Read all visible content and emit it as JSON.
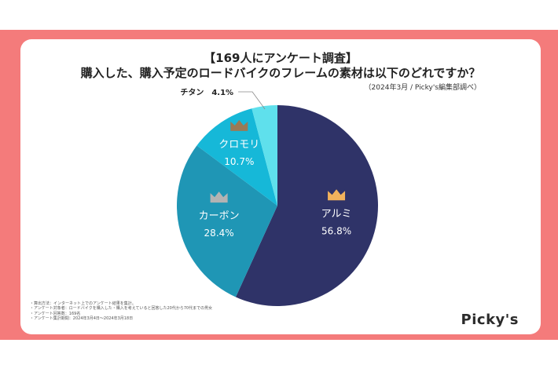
{
  "header": {
    "title_line1": "【169人にアンケート調査】",
    "title_line2": "購入した、購入予定のロードバイクのフレームの素材は以下のどれですか？",
    "source": "（2024年3月 / Picky's編集部調べ）"
  },
  "chart_data": {
    "type": "pie",
    "title": "購入した、購入予定のロードバイクのフレームの素材は以下のどれですか？",
    "start": "12 o'clock, clockwise",
    "slices": [
      {
        "label": "アルミ",
        "value": 56.8,
        "value_label": "56.8%",
        "color": "#2f3368",
        "crown": "gold"
      },
      {
        "label": "カーボン",
        "value": 28.4,
        "value_label": "28.4%",
        "color": "#1f96b5",
        "crown": "silver"
      },
      {
        "label": "クロモリ",
        "value": 10.7,
        "value_label": "10.7%",
        "color": "#16b8d8",
        "crown": "bronze"
      },
      {
        "label": "チタン",
        "value": 4.1,
        "value_label": "4.1%",
        "color": "#5fe0ec",
        "crown": "none"
      }
    ],
    "crown_colors": {
      "gold": "#f2b25c",
      "silver": "#b3b3b3",
      "bronze": "#9a7a55"
    }
  },
  "notes": [
    "・算出方法：インターネット上でのアンケート結果を集計。",
    "・アンケート対象者：ロードバイクを購入した・購入を考えていると回答した20代から70代までの男女",
    "・アンケート回答数：169名",
    "・アンケート集計期間：2024年3月4日〜2024年3月18日"
  ],
  "brand": {
    "logo": "Picky's"
  }
}
